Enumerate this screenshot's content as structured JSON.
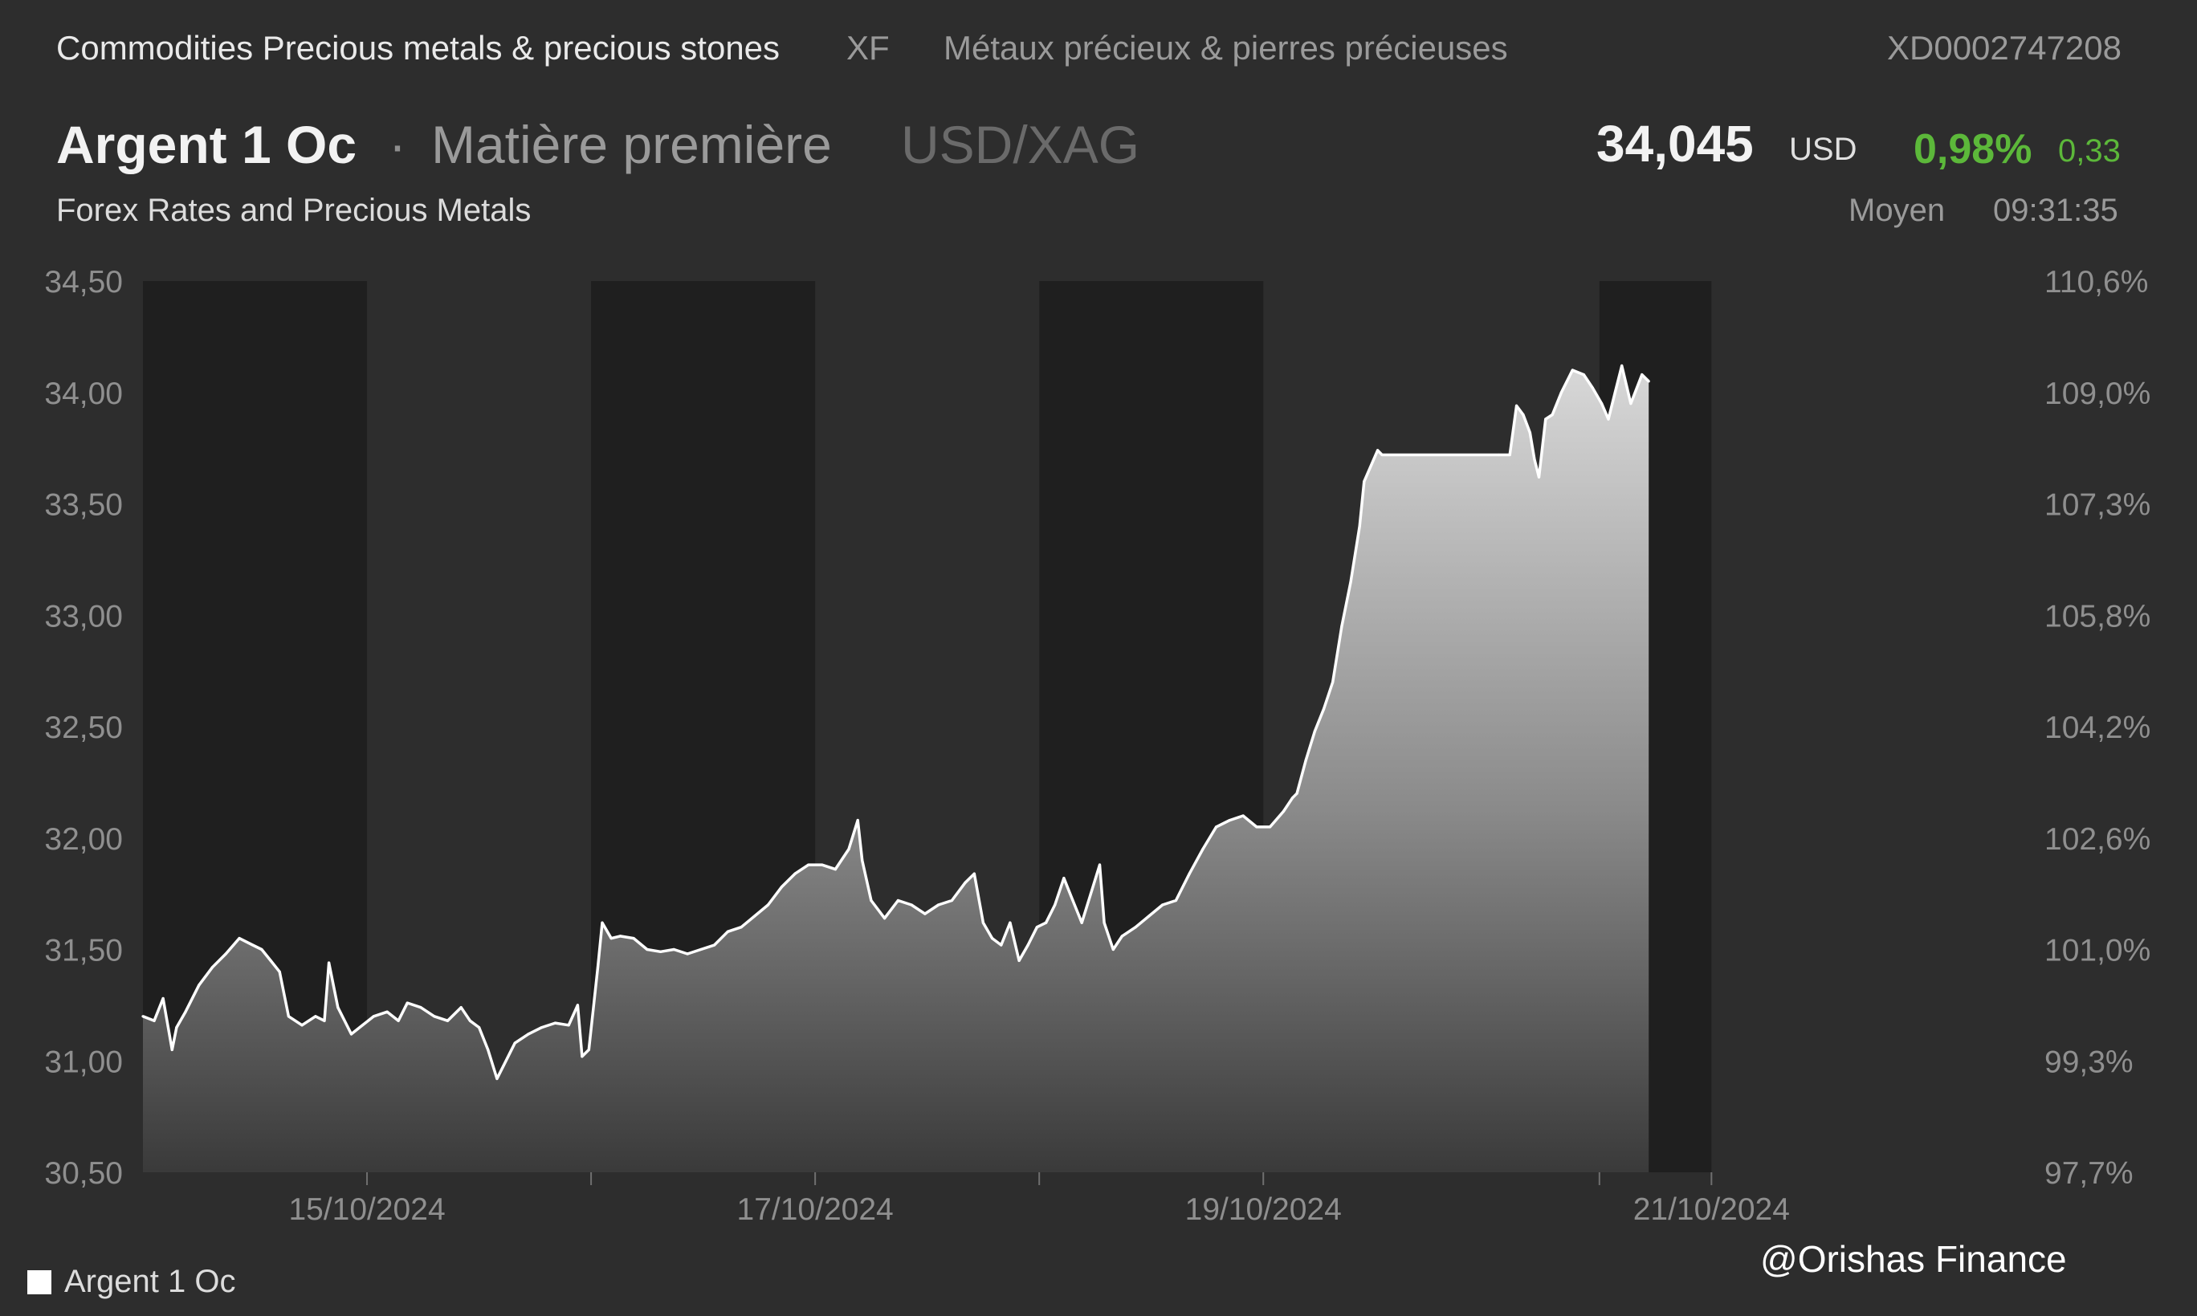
{
  "topbar": {
    "category": "Commodities Precious metals & precious stones",
    "exchange": "XF",
    "category_fr": "Métaux précieux & pierres précieuses",
    "isin": "XD0002747208"
  },
  "header": {
    "name": "Argent 1 Oc",
    "separator": "·",
    "type": "Matière première",
    "pair": "USD/XAG",
    "subtitle": "Forex Rates and Precious Metals",
    "price": "34,045",
    "currency": "USD",
    "change_pct": "0,98%",
    "change_abs": "0,33",
    "price_type": "Moyen",
    "time": "09:31:35"
  },
  "colors": {
    "background": "#2d2d2d",
    "dark_band": "#1f1f1f",
    "line": "#ffffff",
    "positive": "#5cb83a"
  },
  "chart_data": {
    "type": "area",
    "y_left_ticks": [
      "34,50",
      "34,00",
      "33,50",
      "33,00",
      "32,50",
      "32,00",
      "31,50",
      "31,00",
      "30,50"
    ],
    "y_right_ticks": [
      "110,6%",
      "109,0%",
      "107,3%",
      "105,8%",
      "104,2%",
      "102,6%",
      "101,0%",
      "99,3%",
      "97,7%"
    ],
    "ylim": [
      30.5,
      34.5
    ],
    "x_tick_labels": [
      {
        "label": "15/10/2024",
        "x": 1.0
      },
      {
        "label": "17/10/2024",
        "x": 3.0
      },
      {
        "label": "19/10/2024",
        "x": 5.0
      },
      {
        "label": "21/10/2024",
        "x": 7.0
      }
    ],
    "xlim": [
      0.0,
      8.4
    ],
    "x_minor_ticks": [
      2.0,
      4.0,
      6.5
    ],
    "dark_bands": [
      [
        0.0,
        1.0
      ],
      [
        2.0,
        3.0
      ],
      [
        4.0,
        5.0
      ],
      [
        6.5,
        7.0
      ]
    ],
    "series": [
      {
        "name": "Argent 1 Oc",
        "points": [
          [
            0.0,
            31.2
          ],
          [
            0.05,
            31.18
          ],
          [
            0.09,
            31.28
          ],
          [
            0.13,
            31.05
          ],
          [
            0.15,
            31.15
          ],
          [
            0.19,
            31.22
          ],
          [
            0.25,
            31.34
          ],
          [
            0.31,
            31.42
          ],
          [
            0.37,
            31.48
          ],
          [
            0.43,
            31.55
          ],
          [
            0.49,
            31.52
          ],
          [
            0.53,
            31.5
          ],
          [
            0.57,
            31.45
          ],
          [
            0.61,
            31.4
          ],
          [
            0.65,
            31.2
          ],
          [
            0.71,
            31.16
          ],
          [
            0.77,
            31.2
          ],
          [
            0.81,
            31.18
          ],
          [
            0.83,
            31.44
          ],
          [
            0.87,
            31.24
          ],
          [
            0.93,
            31.12
          ],
          [
            0.98,
            31.16
          ],
          [
            1.03,
            31.2
          ],
          [
            1.09,
            31.22
          ],
          [
            1.14,
            31.18
          ],
          [
            1.18,
            31.26
          ],
          [
            1.24,
            31.24
          ],
          [
            1.3,
            31.2
          ],
          [
            1.36,
            31.18
          ],
          [
            1.42,
            31.24
          ],
          [
            1.46,
            31.18
          ],
          [
            1.5,
            31.15
          ],
          [
            1.54,
            31.05
          ],
          [
            1.58,
            30.92
          ],
          [
            1.61,
            30.98
          ],
          [
            1.66,
            31.08
          ],
          [
            1.72,
            31.12
          ],
          [
            1.78,
            31.15
          ],
          [
            1.84,
            31.17
          ],
          [
            1.9,
            31.16
          ],
          [
            1.94,
            31.25
          ],
          [
            1.96,
            31.02
          ],
          [
            1.99,
            31.05
          ],
          [
            2.03,
            31.42
          ],
          [
            2.05,
            31.62
          ],
          [
            2.09,
            31.55
          ],
          [
            2.13,
            31.56
          ],
          [
            2.19,
            31.55
          ],
          [
            2.25,
            31.5
          ],
          [
            2.31,
            31.49
          ],
          [
            2.37,
            31.5
          ],
          [
            2.43,
            31.48
          ],
          [
            2.49,
            31.5
          ],
          [
            2.55,
            31.52
          ],
          [
            2.61,
            31.58
          ],
          [
            2.67,
            31.6
          ],
          [
            2.73,
            31.65
          ],
          [
            2.79,
            31.7
          ],
          [
            2.85,
            31.78
          ],
          [
            2.91,
            31.84
          ],
          [
            2.97,
            31.88
          ],
          [
            3.03,
            31.88
          ],
          [
            3.09,
            31.86
          ],
          [
            3.15,
            31.95
          ],
          [
            3.19,
            32.08
          ],
          [
            3.21,
            31.9
          ],
          [
            3.25,
            31.72
          ],
          [
            3.31,
            31.64
          ],
          [
            3.37,
            31.72
          ],
          [
            3.43,
            31.7
          ],
          [
            3.49,
            31.66
          ],
          [
            3.55,
            31.7
          ],
          [
            3.61,
            31.72
          ],
          [
            3.67,
            31.8
          ],
          [
            3.71,
            31.84
          ],
          [
            3.75,
            31.62
          ],
          [
            3.79,
            31.55
          ],
          [
            3.83,
            31.52
          ],
          [
            3.87,
            31.62
          ],
          [
            3.91,
            31.45
          ],
          [
            3.95,
            31.52
          ],
          [
            3.99,
            31.6
          ],
          [
            4.03,
            31.62
          ],
          [
            4.07,
            31.7
          ],
          [
            4.11,
            31.82
          ],
          [
            4.15,
            31.72
          ],
          [
            4.19,
            31.62
          ],
          [
            4.23,
            31.75
          ],
          [
            4.27,
            31.88
          ],
          [
            4.29,
            31.62
          ],
          [
            4.33,
            31.5
          ],
          [
            4.37,
            31.56
          ],
          [
            4.43,
            31.6
          ],
          [
            4.49,
            31.65
          ],
          [
            4.55,
            31.7
          ],
          [
            4.61,
            31.72
          ],
          [
            4.67,
            31.84
          ],
          [
            4.73,
            31.95
          ],
          [
            4.79,
            32.05
          ],
          [
            4.85,
            32.08
          ],
          [
            4.91,
            32.1
          ],
          [
            4.97,
            32.05
          ],
          [
            5.03,
            32.05
          ],
          [
            5.09,
            32.12
          ],
          [
            5.13,
            32.18
          ],
          [
            5.15,
            32.2
          ],
          [
            5.19,
            32.35
          ],
          [
            5.23,
            32.48
          ],
          [
            5.27,
            32.58
          ],
          [
            5.31,
            32.7
          ],
          [
            5.35,
            32.95
          ],
          [
            5.39,
            33.15
          ],
          [
            5.43,
            33.4
          ],
          [
            5.45,
            33.6
          ],
          [
            5.51,
            33.74
          ],
          [
            5.53,
            33.72
          ],
          [
            6.05,
            33.72
          ],
          [
            6.1,
            33.72
          ],
          [
            6.13,
            33.94
          ],
          [
            6.16,
            33.9
          ],
          [
            6.19,
            33.82
          ],
          [
            6.21,
            33.7
          ],
          [
            6.23,
            33.62
          ],
          [
            6.26,
            33.88
          ],
          [
            6.29,
            33.9
          ],
          [
            6.33,
            34.0
          ],
          [
            6.38,
            34.1
          ],
          [
            6.43,
            34.08
          ],
          [
            6.47,
            34.02
          ],
          [
            6.51,
            33.95
          ],
          [
            6.54,
            33.88
          ],
          [
            6.57,
            34.0
          ],
          [
            6.6,
            34.12
          ],
          [
            6.64,
            33.95
          ],
          [
            6.69,
            34.08
          ],
          [
            6.72,
            34.05
          ]
        ]
      }
    ]
  },
  "legend": {
    "label": "Argent 1 Oc"
  },
  "watermark": "@Orishas Finance"
}
